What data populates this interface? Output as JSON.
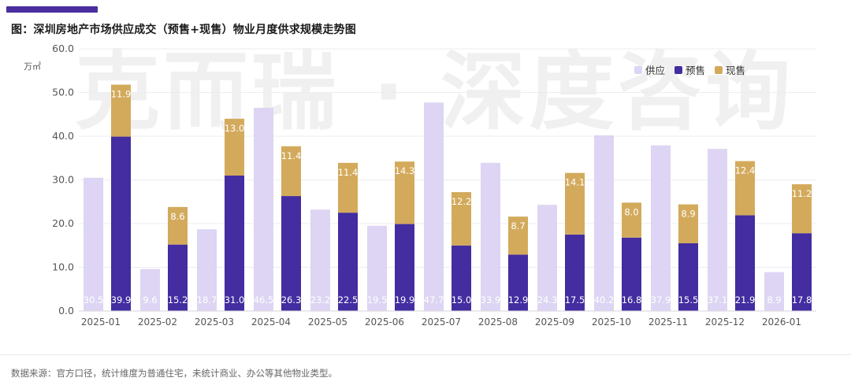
{
  "title": "图：深圳房地产市场供应成交（预售+现售）物业月度供求规模走势图",
  "watermark_text": "克而瑞 · 深度咨询",
  "source_note": "数据来源：官方口径，统计维度为普通住宅，未统计商业、办公等其他物业类型。",
  "colors": {
    "supply": "#ddd5f3",
    "presale": "#432da0",
    "spot": "#d3aa5c",
    "bar_top": "#4a2ea0",
    "axis_text": "#555555",
    "grid": "#ececf2"
  },
  "chart_data": {
    "type": "bar",
    "title": "图：深圳房地产市场供应成交（预售+现售）物业月度供求规模走势图",
    "ylabel": "万㎡",
    "xlabel": "",
    "ylim": [
      0,
      60
    ],
    "yticks": [
      "0.0",
      "10.0",
      "20.0",
      "30.0",
      "40.0",
      "50.0",
      "60.0"
    ],
    "legend_position": "top-right",
    "categories": [
      "2025-01",
      "2025-02",
      "2025-03",
      "2025-04",
      "2025-05",
      "2025-06",
      "2025-07",
      "2025-08",
      "2025-09",
      "2025-10",
      "2025-11",
      "2025-12",
      "2026-01"
    ],
    "series": [
      {
        "name": "供应",
        "values": [
          30.5,
          9.6,
          18.7,
          46.5,
          23.2,
          19.5,
          47.7,
          33.9,
          24.3,
          40.2,
          37.9,
          37.1,
          8.9
        ],
        "labels": [
          "30.5",
          "9.6",
          "18.7",
          "46.5",
          "23.2",
          "19.5",
          "47.7",
          "33.9",
          "24.3",
          "40.2",
          "37.9",
          "37.1",
          "8.9"
        ]
      },
      {
        "name": "预售",
        "values": [
          39.9,
          15.2,
          31.0,
          26.3,
          22.5,
          19.9,
          15.0,
          12.9,
          17.5,
          16.8,
          15.5,
          21.9,
          17.8
        ],
        "labels": [
          "39.9",
          "15.2",
          "31.0",
          "26.3",
          "22.5",
          "19.9",
          "15.0",
          "12.9",
          "17.5",
          "16.8",
          "15.5",
          "21.9",
          "17.8"
        ]
      },
      {
        "name": "现售",
        "values": [
          11.9,
          8.6,
          13.0,
          11.4,
          11.4,
          14.3,
          12.2,
          8.7,
          14.1,
          8.0,
          8.9,
          12.4,
          11.2
        ],
        "labels": [
          "11.9",
          "8.6",
          "13.0",
          "11.4",
          "11.4",
          "14.3",
          "12.2",
          "8.7",
          "14.1",
          "8.0",
          "8.9",
          "12.4",
          "11.2"
        ]
      }
    ]
  }
}
